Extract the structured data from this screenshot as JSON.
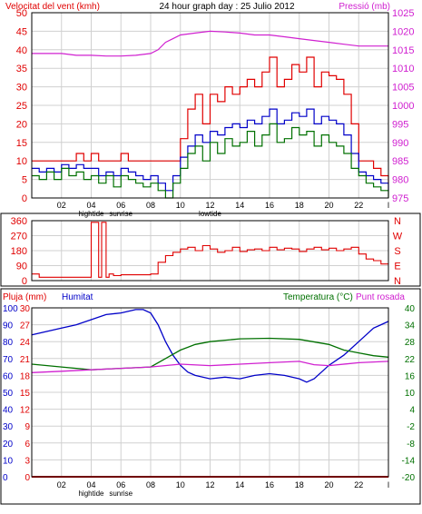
{
  "chart_data": [
    {
      "type": "line",
      "title": "24 hour graph day : 25 Julio 2012",
      "left_axis_label": "Velocitat del vent (kmh)",
      "right_axis_label": "Pressió (mb)",
      "left_ticks": [
        "0",
        "5",
        "10",
        "15",
        "20",
        "25",
        "30",
        "35",
        "40",
        "45",
        "50"
      ],
      "right_ticks": [
        "975",
        "980",
        "985",
        "990",
        "995",
        "1000",
        "1005",
        "1010",
        "1015",
        "1020",
        "1025"
      ],
      "ylim_left": [
        0,
        50
      ],
      "ylim_right": [
        975,
        1025
      ],
      "x_ticks": [
        "02",
        "04",
        "06",
        "08",
        "10",
        "12",
        "14",
        "16",
        "18",
        "20",
        "22",
        "l"
      ],
      "x_annotations": [
        "hightide",
        "sunrise",
        "lowtide"
      ],
      "series": [
        {
          "color": "#e00000",
          "axis": "left",
          "x": [
            0,
            0.5,
            1,
            1.5,
            2,
            2.5,
            3,
            3.5,
            4,
            4.5,
            5,
            5.5,
            6,
            6.5,
            7,
            7.5,
            8,
            8.5,
            9,
            9.5,
            10,
            10.5,
            11,
            11.5,
            12,
            12.5,
            13,
            13.5,
            14,
            14.5,
            15,
            15.5,
            16,
            16.5,
            17,
            17.5,
            18,
            18.5,
            19,
            19.5,
            20,
            20.5,
            21,
            21.5,
            22,
            22.5,
            23,
            23.5,
            24
          ],
          "y": [
            10,
            10,
            10,
            10,
            10,
            10,
            12,
            10,
            12,
            10,
            10,
            10,
            12,
            10,
            10,
            10,
            10,
            10,
            10,
            10,
            16,
            24,
            28,
            20,
            28,
            26,
            30,
            28,
            30,
            32,
            30,
            34,
            38,
            30,
            32,
            36,
            34,
            38,
            30,
            34,
            33,
            32,
            28,
            20,
            10,
            10,
            8,
            6,
            4
          ]
        },
        {
          "color": "#0000c8",
          "axis": "left",
          "x": [
            0,
            0.5,
            1,
            1.5,
            2,
            2.5,
            3,
            3.5,
            4,
            4.5,
            5,
            5.5,
            6,
            6.5,
            7,
            7.5,
            8,
            8.5,
            9,
            9.5,
            10,
            10.5,
            11,
            11.5,
            12,
            12.5,
            13,
            13.5,
            14,
            14.5,
            15,
            15.5,
            16,
            16.5,
            17,
            17.5,
            18,
            18.5,
            19,
            19.5,
            20,
            20.5,
            21,
            21.5,
            22,
            22.5,
            23,
            23.5,
            24
          ],
          "y": [
            8,
            7,
            8,
            7,
            9,
            8,
            9,
            8,
            8,
            6,
            7,
            6,
            8,
            7,
            6,
            5,
            6,
            4,
            2,
            6,
            11,
            14,
            17,
            15,
            18,
            17,
            19,
            20,
            19,
            21,
            20,
            22,
            24,
            20,
            21,
            23,
            22,
            24,
            20,
            22,
            21,
            20,
            17,
            12,
            7,
            6,
            5,
            4,
            2
          ]
        },
        {
          "color": "#007000",
          "axis": "left",
          "x": [
            0,
            0.5,
            1,
            1.5,
            2,
            2.5,
            3,
            3.5,
            4,
            4.5,
            5,
            5.5,
            6,
            6.5,
            7,
            7.5,
            8,
            8.5,
            9,
            9.5,
            10,
            10.5,
            11,
            11.5,
            12,
            12.5,
            13,
            13.5,
            14,
            14.5,
            15,
            15.5,
            16,
            16.5,
            17,
            17.5,
            18,
            18.5,
            19,
            19.5,
            20,
            20.5,
            21,
            21.5,
            22,
            22.5,
            23,
            23.5,
            24
          ],
          "y": [
            6,
            5,
            7,
            5,
            8,
            6,
            7,
            5,
            6,
            4,
            6,
            3,
            6,
            5,
            4,
            3,
            4,
            2,
            0,
            4,
            8,
            12,
            14,
            10,
            15,
            12,
            16,
            14,
            15,
            18,
            14,
            17,
            20,
            15,
            16,
            19,
            17,
            18,
            14,
            17,
            15,
            14,
            12,
            8,
            6,
            4,
            3,
            2,
            0
          ]
        },
        {
          "color": "#d020d0",
          "axis": "right",
          "x": [
            0,
            1,
            2,
            3,
            4,
            5,
            6,
            7,
            8,
            8.5,
            9,
            9.5,
            10,
            11,
            12,
            13,
            14,
            15,
            16,
            17,
            18,
            19,
            20,
            21,
            22,
            23,
            24
          ],
          "y": [
            1014,
            1014,
            1014,
            1013.5,
            1013.5,
            1013.3,
            1013.3,
            1013.5,
            1014,
            1015,
            1017,
            1018,
            1019,
            1019.5,
            1020,
            1019.8,
            1019.5,
            1019,
            1019,
            1018.5,
            1018,
            1017.5,
            1017,
            1016.5,
            1016,
            1016,
            1016
          ]
        }
      ]
    },
    {
      "type": "line",
      "right_axis_letters": [
        "N",
        "W",
        "S",
        "E",
        "N"
      ],
      "left_ticks": [
        "0",
        "90",
        "180",
        "270",
        "360"
      ],
      "ylim": [
        0,
        360
      ],
      "series": [
        {
          "color": "#e00000",
          "x": [
            0,
            0.5,
            2,
            2.5,
            3,
            3.8,
            4,
            4.3,
            4.5,
            4.7,
            4.8,
            5,
            5.2,
            5.5,
            6,
            7,
            8,
            8.5,
            9,
            9.5,
            10,
            10.5,
            11,
            11.5,
            12,
            12.5,
            13,
            13.5,
            14,
            14.5,
            15,
            15.5,
            16,
            16.5,
            17,
            17.5,
            18,
            18.5,
            19,
            19.5,
            20,
            20.5,
            21,
            21.5,
            22,
            22.5,
            23,
            23.5,
            24
          ],
          "y": [
            40,
            20,
            20,
            20,
            20,
            20,
            350,
            350,
            20,
            350,
            350,
            20,
            40,
            30,
            35,
            35,
            40,
            110,
            150,
            170,
            190,
            200,
            180,
            210,
            190,
            170,
            180,
            200,
            175,
            185,
            190,
            180,
            200,
            185,
            195,
            190,
            175,
            190,
            200,
            185,
            195,
            180,
            190,
            200,
            160,
            130,
            120,
            100,
            100
          ]
        }
      ]
    },
    {
      "type": "line",
      "labels": [
        "Pluja (mm)",
        "Humitat",
        "Temperatura (°C)",
        "Punt rosada"
      ],
      "rain_ticks": [
        "0",
        "3",
        "6",
        "9",
        "12",
        "15",
        "18",
        "21",
        "24",
        "27",
        "30"
      ],
      "humidity_ticks": [
        "100",
        "90",
        "80",
        "70",
        "60",
        "50",
        "40",
        "30",
        "20",
        "10",
        "0"
      ],
      "temp_ticks": [
        "40",
        "34",
        "28",
        "22",
        "16",
        "10",
        "4",
        "-2",
        "-8",
        "-14",
        "-20"
      ],
      "ylim_rain": [
        0,
        30
      ],
      "ylim_humidity": [
        0,
        100
      ],
      "ylim_temp": [
        -20,
        40
      ],
      "x_ticks": [
        "02",
        "04",
        "06",
        "08",
        "10",
        "12",
        "14",
        "16",
        "18",
        "20",
        "22",
        "l"
      ],
      "x_annotations": [
        "hightide",
        "sunrise"
      ],
      "series": [
        {
          "color": "#0000c8",
          "axis": "humidity",
          "x": [
            0,
            1,
            2,
            3,
            4,
            5,
            6,
            7,
            7.5,
            8,
            8.5,
            9,
            9.5,
            10,
            10.5,
            11,
            12,
            13,
            14,
            15,
            16,
            17,
            18,
            18.5,
            19,
            19.5,
            20,
            21,
            22,
            23,
            23.5,
            24
          ],
          "y": [
            84,
            86,
            88,
            90,
            93,
            96,
            97,
            99,
            99,
            97,
            90,
            80,
            72,
            66,
            62,
            60,
            58,
            59,
            58,
            60,
            61,
            60,
            58,
            56,
            58,
            62,
            66,
            72,
            80,
            88,
            90,
            92
          ]
        },
        {
          "color": "#007000",
          "axis": "temp",
          "x": [
            0,
            2,
            4,
            6,
            8,
            9,
            10,
            11,
            12,
            14,
            16,
            18,
            20,
            21,
            22,
            23,
            24
          ],
          "y": [
            20,
            19,
            18,
            18.5,
            19,
            22,
            25,
            27,
            28,
            29,
            29.2,
            28.8,
            27,
            25,
            24,
            23,
            22.5
          ]
        },
        {
          "color": "#d020d0",
          "axis": "temp",
          "x": [
            0,
            2,
            4,
            6,
            8,
            10,
            12,
            14,
            16,
            18,
            19,
            20,
            22,
            24
          ],
          "y": [
            17,
            17.5,
            18,
            18.5,
            19,
            20,
            19.5,
            20,
            20.5,
            21,
            19.8,
            19.5,
            20.5,
            21
          ]
        },
        {
          "color": "#e00000",
          "axis": "rain",
          "x": [
            0,
            24
          ],
          "y": [
            0,
            0
          ]
        }
      ]
    }
  ]
}
